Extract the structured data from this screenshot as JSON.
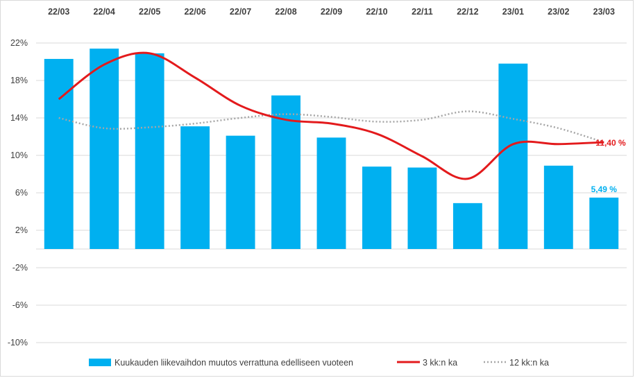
{
  "chart_data": {
    "type": "bar",
    "categories": [
      "22/03",
      "22/04",
      "22/05",
      "22/06",
      "22/07",
      "22/08",
      "22/09",
      "22/10",
      "22/11",
      "22/12",
      "23/01",
      "23/02",
      "23/03"
    ],
    "y_ticks": [
      "22%",
      "18%",
      "14%",
      "10%",
      "6%",
      "2%",
      "-2%",
      "-6%",
      "-10%"
    ],
    "ylim": [
      -10,
      22
    ],
    "grid": true,
    "legend_position": "bottom",
    "series": [
      {
        "name": "Kuukauden liikevaihdon muutos verrattuna edelliseen vuoteen",
        "kind": "bar",
        "color": "#00b0f0",
        "values": [
          20.3,
          21.4,
          20.9,
          13.1,
          12.1,
          16.4,
          11.9,
          8.8,
          8.7,
          4.9,
          19.8,
          8.9,
          5.49
        ]
      },
      {
        "name": "3 kk:n ka",
        "kind": "line",
        "color": "#e31a1c",
        "values": [
          16.0,
          19.7,
          20.9,
          18.3,
          15.3,
          13.8,
          13.4,
          12.3,
          9.9,
          7.5,
          11.2,
          11.2,
          11.4
        ]
      },
      {
        "name": "12 kk:n ka",
        "kind": "line-dotted",
        "color": "#a6a6a6",
        "values": [
          14.0,
          12.9,
          13.0,
          13.4,
          14.0,
          14.4,
          14.1,
          13.6,
          13.8,
          14.7,
          13.9,
          12.9,
          11.4
        ]
      }
    ],
    "data_labels": [
      {
        "series": 0,
        "index": 12,
        "text": "5,49 %",
        "color": "#00b0f0"
      },
      {
        "series": 1,
        "index": 12,
        "text": "11,40 %",
        "color": "#e31a1c"
      }
    ]
  },
  "legend": {
    "bar_label": "Kuukauden liikevaihdon muutos verrattuna edelliseen vuoteen",
    "line3_label": "3 kk:n ka",
    "line12_label": "12 kk:n ka"
  }
}
